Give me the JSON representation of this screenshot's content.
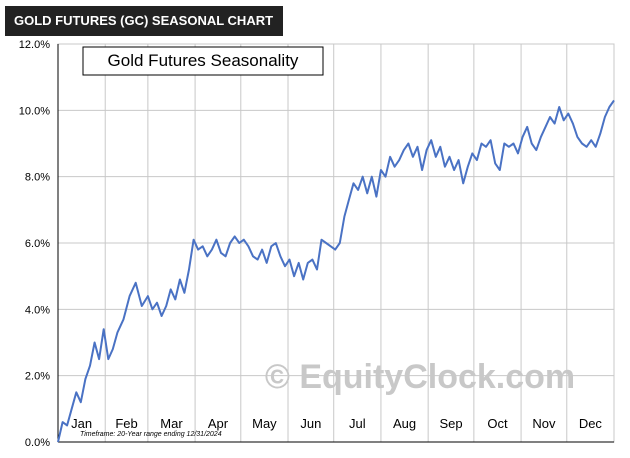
{
  "header": {
    "title": "GOLD FUTURES (GC) SEASONAL CHART"
  },
  "watermark": {
    "text": "© EquityClock.com",
    "color": "#c8c8c8"
  },
  "colors": {
    "line": "#4a72c4",
    "grid": "#c8c8c8",
    "axis": "#000000",
    "header_bg": "#222222"
  },
  "chart_data": {
    "type": "line",
    "title": "Gold Futures Seasonality",
    "footnote": "Timeframe: 20-Year range ending 12/31/2024",
    "xlabel": "",
    "ylabel": "",
    "x_unit": "day_of_year",
    "xlim": [
      1,
      366
    ],
    "ylim": [
      0,
      12
    ],
    "y_ticks": [
      0,
      2,
      4,
      6,
      8,
      10,
      12
    ],
    "y_tick_labels": [
      "0.0%",
      "2.0%",
      "4.0%",
      "6.0%",
      "8.0%",
      "10.0%",
      "12.0%"
    ],
    "x_ticks": [
      {
        "label": "Jan",
        "day": 1
      },
      {
        "label": "Feb",
        "day": 32
      },
      {
        "label": "Mar",
        "day": 60
      },
      {
        "label": "Apr",
        "day": 91
      },
      {
        "label": "May",
        "day": 121
      },
      {
        "label": "Jun",
        "day": 152
      },
      {
        "label": "Jul",
        "day": 182
      },
      {
        "label": "Aug",
        "day": 213
      },
      {
        "label": "Sep",
        "day": 244
      },
      {
        "label": "Oct",
        "day": 274
      },
      {
        "label": "Nov",
        "day": 305
      },
      {
        "label": "Dec",
        "day": 335
      }
    ],
    "grid": true,
    "legend": "none",
    "series": [
      {
        "x": [
          1,
          4,
          7,
          10,
          13,
          16,
          19,
          22,
          25,
          28,
          31,
          34,
          37,
          40,
          44,
          48,
          52,
          56,
          60,
          63,
          66,
          69,
          72,
          75,
          78,
          81,
          84,
          87,
          90,
          93,
          96,
          99,
          102,
          105,
          108,
          111,
          114,
          117,
          120,
          123,
          126,
          129,
          132,
          135,
          138,
          141,
          144,
          147,
          150,
          153,
          156,
          159,
          162,
          165,
          168,
          171,
          174,
          177,
          180,
          183,
          186,
          189,
          192,
          195,
          198,
          201,
          204,
          207,
          210,
          213,
          216,
          219,
          222,
          225,
          228,
          231,
          234,
          237,
          240,
          243,
          246,
          249,
          252,
          255,
          258,
          261,
          264,
          267,
          270,
          273,
          276,
          279,
          282,
          285,
          288,
          291,
          294,
          297,
          300,
          303,
          306,
          309,
          312,
          315,
          318,
          321,
          324,
          327,
          330,
          333,
          336,
          339,
          342,
          345,
          348,
          351,
          354,
          357,
          360,
          363,
          366
        ],
        "values": [
          0.0,
          0.6,
          0.5,
          1.0,
          1.5,
          1.2,
          1.9,
          2.3,
          3.0,
          2.5,
          3.4,
          2.5,
          2.8,
          3.3,
          3.7,
          4.4,
          4.8,
          4.1,
          4.4,
          4.0,
          4.2,
          3.8,
          4.1,
          4.6,
          4.3,
          4.9,
          4.5,
          5.2,
          6.1,
          5.8,
          5.9,
          5.6,
          5.8,
          6.1,
          5.7,
          5.6,
          6.0,
          6.2,
          6.0,
          6.1,
          5.9,
          5.6,
          5.5,
          5.8,
          5.4,
          5.9,
          6.0,
          5.6,
          5.3,
          5.5,
          5.0,
          5.4,
          4.9,
          5.4,
          5.5,
          5.2,
          6.1,
          6.0,
          5.9,
          5.8,
          6.0,
          6.8,
          7.3,
          7.8,
          7.6,
          8.0,
          7.5,
          8.0,
          7.4,
          8.2,
          8.0,
          8.6,
          8.3,
          8.5,
          8.8,
          9.0,
          8.6,
          8.9,
          8.2,
          8.8,
          9.1,
          8.6,
          8.9,
          8.3,
          8.6,
          8.2,
          8.5,
          7.8,
          8.3,
          8.7,
          8.5,
          9.0,
          8.9,
          9.1,
          8.4,
          8.2,
          9.0,
          8.9,
          9.0,
          8.7,
          9.2,
          9.5,
          9.0,
          8.8,
          9.2,
          9.5,
          9.8,
          9.6,
          10.1,
          9.7,
          9.9,
          9.6,
          9.2,
          9.0,
          8.9,
          9.1,
          8.9,
          9.3,
          9.8,
          10.1,
          10.3
        ]
      }
    ]
  }
}
